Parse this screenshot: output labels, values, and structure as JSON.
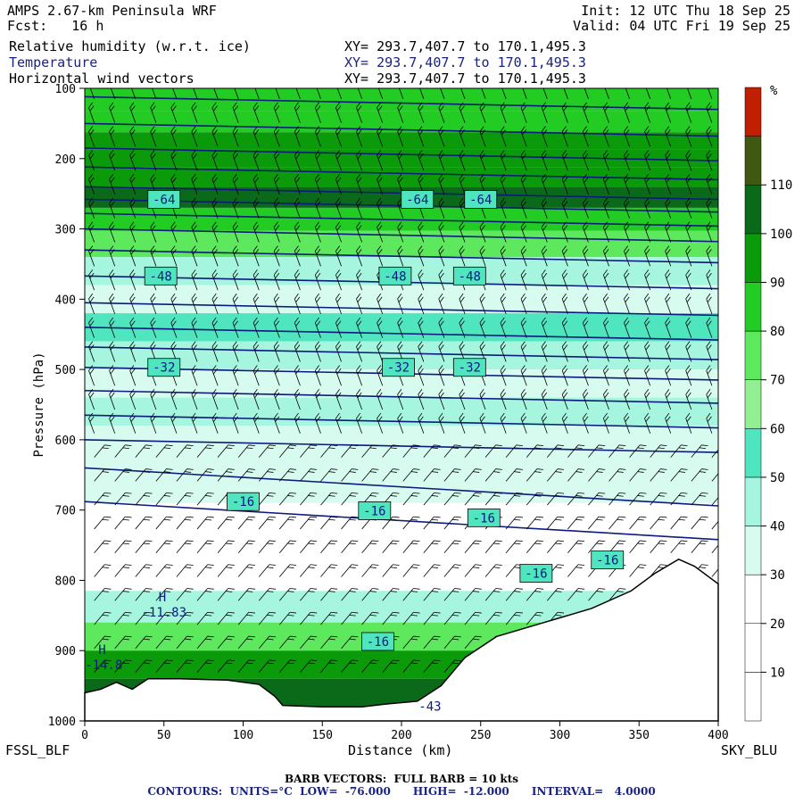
{
  "header": {
    "model": "AMPS 2.67-km Peninsula WRF",
    "fcst": "Fcst:   16 h",
    "init": "Init: 12 UTC Thu 18 Sep 25",
    "valid": "Valid: 04 UTC Fri 19 Sep 25",
    "fields": [
      {
        "name": "Relative humidity (w.r.t. ice)",
        "xy": "XY= 293.7,407.7 to 170.1,495.3",
        "color": "#000000"
      },
      {
        "name": "Temperature",
        "xy": "XY= 293.7,407.7 to 170.1,495.3",
        "color": "#1a237e"
      },
      {
        "name": "Horizontal wind vectors",
        "xy": "XY= 293.7,407.7 to 170.1,495.3",
        "color": "#000000"
      }
    ]
  },
  "chart_data": {
    "type": "heatmap",
    "xlabel": "Distance (km)",
    "ylabel": "Pressure (hPa)",
    "xlim": [
      0,
      400
    ],
    "ylim": [
      1000,
      100
    ],
    "x_ticks": [
      0,
      50,
      100,
      150,
      200,
      250,
      300,
      350,
      400
    ],
    "y_ticks": [
      100,
      200,
      300,
      400,
      500,
      600,
      700,
      800,
      900,
      1000
    ],
    "left_endpoint": "FSSL_BLF",
    "right_endpoint": "SKY_BLU",
    "colorbar": {
      "unit": "%",
      "levels": [
        0,
        10,
        20,
        30,
        40,
        50,
        60,
        70,
        80,
        90,
        100,
        110,
        120
      ],
      "tick_labels": [
        10,
        20,
        30,
        40,
        50,
        60,
        70,
        80,
        90,
        100,
        110
      ],
      "colors": [
        "#ffffff",
        "#ffffff",
        "#ffffff",
        "#d8fbf0",
        "#a6f5df",
        "#4fe5bf",
        "#92f092",
        "#5ee85e",
        "#22cc22",
        "#0a9a0a",
        "#0a6a1a",
        "#3f5a10",
        "#c02000"
      ]
    },
    "rh_bands": [
      {
        "p": 115,
        "rh": 80
      },
      {
        "p": 150,
        "rh": 85
      },
      {
        "p": 175,
        "rh": 90
      },
      {
        "p": 200,
        "rh": 95
      },
      {
        "p": 225,
        "rh": 90
      },
      {
        "p": 255,
        "rh": 105
      },
      {
        "p": 285,
        "rh": 85
      },
      {
        "p": 320,
        "rh": 70
      },
      {
        "p": 360,
        "rh": 45
      },
      {
        "p": 400,
        "rh": 35
      },
      {
        "p": 440,
        "rh": 55
      },
      {
        "p": 480,
        "rh": 45
      },
      {
        "p": 520,
        "rh": 35
      },
      {
        "p": 560,
        "rh": 45
      },
      {
        "p": 600,
        "rh": 30
      },
      {
        "p": 660,
        "rh": 35
      },
      {
        "p": 720,
        "rh": 20
      },
      {
        "p": 790,
        "rh": 20
      },
      {
        "p": 840,
        "rh": 45
      },
      {
        "p": 880,
        "rh": 75
      },
      {
        "p": 920,
        "rh": 90
      },
      {
        "p": 960,
        "rh": 100
      }
    ],
    "temperature_contours": {
      "units": "°C",
      "low": -76,
      "high": -12,
      "interval": 4,
      "labels": [
        {
          "text": "-64",
          "x": [
            50,
            210,
            250
          ],
          "p": 258
        },
        {
          "text": "-48",
          "x": [
            48,
            196,
            243
          ],
          "p": 367
        },
        {
          "text": "-32",
          "x": [
            50,
            198,
            243
          ],
          "p": 497
        },
        {
          "text": "-16",
          "x": [
            100,
            183,
            252,
            285,
            330,
            185
          ],
          "p": [
            688,
            701,
            711,
            790,
            771,
            887
          ]
        }
      ],
      "extrema": [
        {
          "label": "H",
          "value": "-11.83",
          "x": 50,
          "p": 845
        },
        {
          "label": "H",
          "value": "-14.8",
          "x": 12,
          "p": 920
        },
        {
          "label": "",
          "value": "-43",
          "x": 218,
          "p": 979
        }
      ]
    },
    "terrain": [
      {
        "x": 0,
        "p": 960
      },
      {
        "x": 10,
        "p": 955
      },
      {
        "x": 20,
        "p": 945
      },
      {
        "x": 30,
        "p": 955
      },
      {
        "x": 40,
        "p": 940
      },
      {
        "x": 60,
        "p": 940
      },
      {
        "x": 90,
        "p": 942
      },
      {
        "x": 110,
        "p": 948
      },
      {
        "x": 120,
        "p": 965
      },
      {
        "x": 125,
        "p": 978
      },
      {
        "x": 150,
        "p": 980
      },
      {
        "x": 175,
        "p": 980
      },
      {
        "x": 190,
        "p": 976
      },
      {
        "x": 210,
        "p": 972
      },
      {
        "x": 225,
        "p": 950
      },
      {
        "x": 240,
        "p": 910
      },
      {
        "x": 260,
        "p": 880
      },
      {
        "x": 290,
        "p": 860
      },
      {
        "x": 320,
        "p": 840
      },
      {
        "x": 345,
        "p": 815
      },
      {
        "x": 360,
        "p": 790
      },
      {
        "x": 375,
        "p": 770
      },
      {
        "x": 385,
        "p": 780
      },
      {
        "x": 400,
        "p": 805
      }
    ],
    "wind": {
      "barb_scale": "FULL BARB = 10 kts"
    }
  },
  "footer": {
    "barb": "BARB VECTORS:  FULL BARB = 10 kts",
    "contours": "CONTOURS:  UNITS=°C  LOW=  -76.000      HIGH=  -12.000      INTERVAL=   4.0000"
  }
}
